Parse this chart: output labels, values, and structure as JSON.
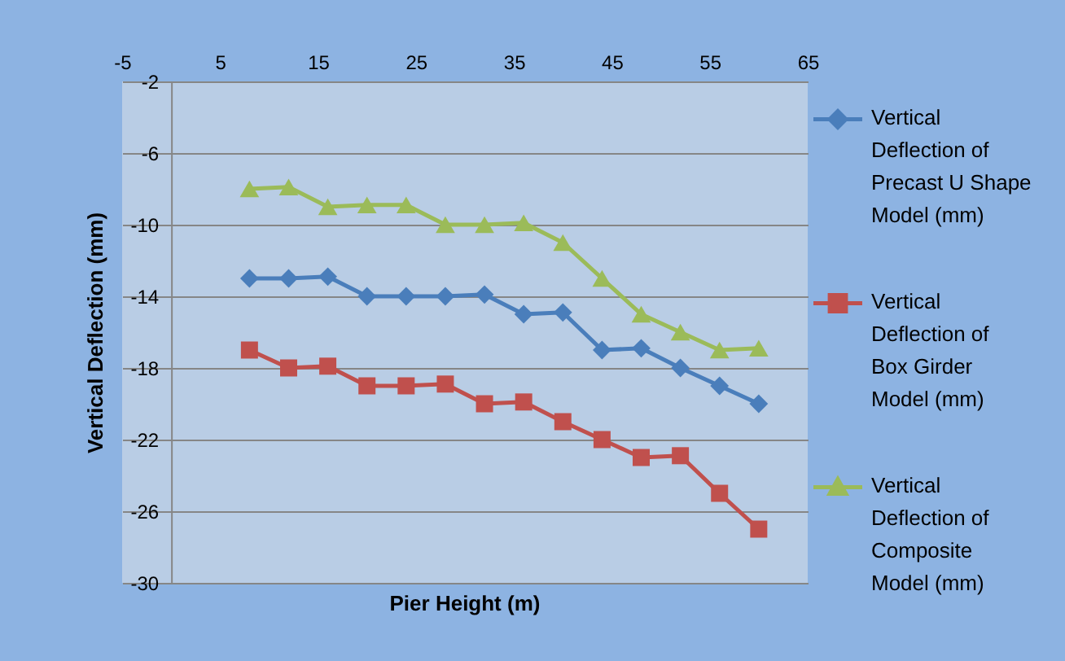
{
  "chart_data": {
    "type": "line",
    "xlabel": "Pier Height (m)",
    "ylabel": "Vertical Deflection (mm)",
    "x": [
      8,
      12,
      16,
      20,
      24,
      28,
      32,
      36,
      40,
      44,
      48,
      52,
      56,
      60
    ],
    "series": [
      {
        "name": "Vertical Deflection of Precast U Shape Model (mm)",
        "color": "#4a7ebb",
        "marker": "diamond",
        "values": [
          -13,
          -13,
          -12.9,
          -14,
          -14,
          -14,
          -13.9,
          -15,
          -14.9,
          -17,
          -16.9,
          -18,
          -19,
          -20
        ]
      },
      {
        "name": "Vertical Deflection of Box Girder Model (mm)",
        "color": "#c0504d",
        "marker": "square",
        "values": [
          -17,
          -18,
          -17.9,
          -19,
          -19,
          -18.9,
          -20,
          -19.9,
          -21,
          -22,
          -23,
          -22.9,
          -25,
          -27
        ]
      },
      {
        "name": "Vertical Deflection of Composite Model (mm)",
        "color": "#9bbb59",
        "marker": "triangle",
        "values": [
          -8,
          -7.9,
          -9,
          -8.9,
          -8.9,
          -10,
          -10,
          -9.9,
          -11,
          -13,
          -15,
          -16,
          -17,
          -16.9
        ]
      }
    ],
    "xlim": [
      -5,
      65
    ],
    "xticks": [
      -5,
      5,
      15,
      25,
      35,
      45,
      55,
      65
    ],
    "ylim": [
      -30,
      -2
    ],
    "yticks": [
      -30,
      -26,
      -22,
      -18,
      -14,
      -10,
      -6,
      -2
    ],
    "grid": "y",
    "legend": "right",
    "line_style": "solid"
  }
}
